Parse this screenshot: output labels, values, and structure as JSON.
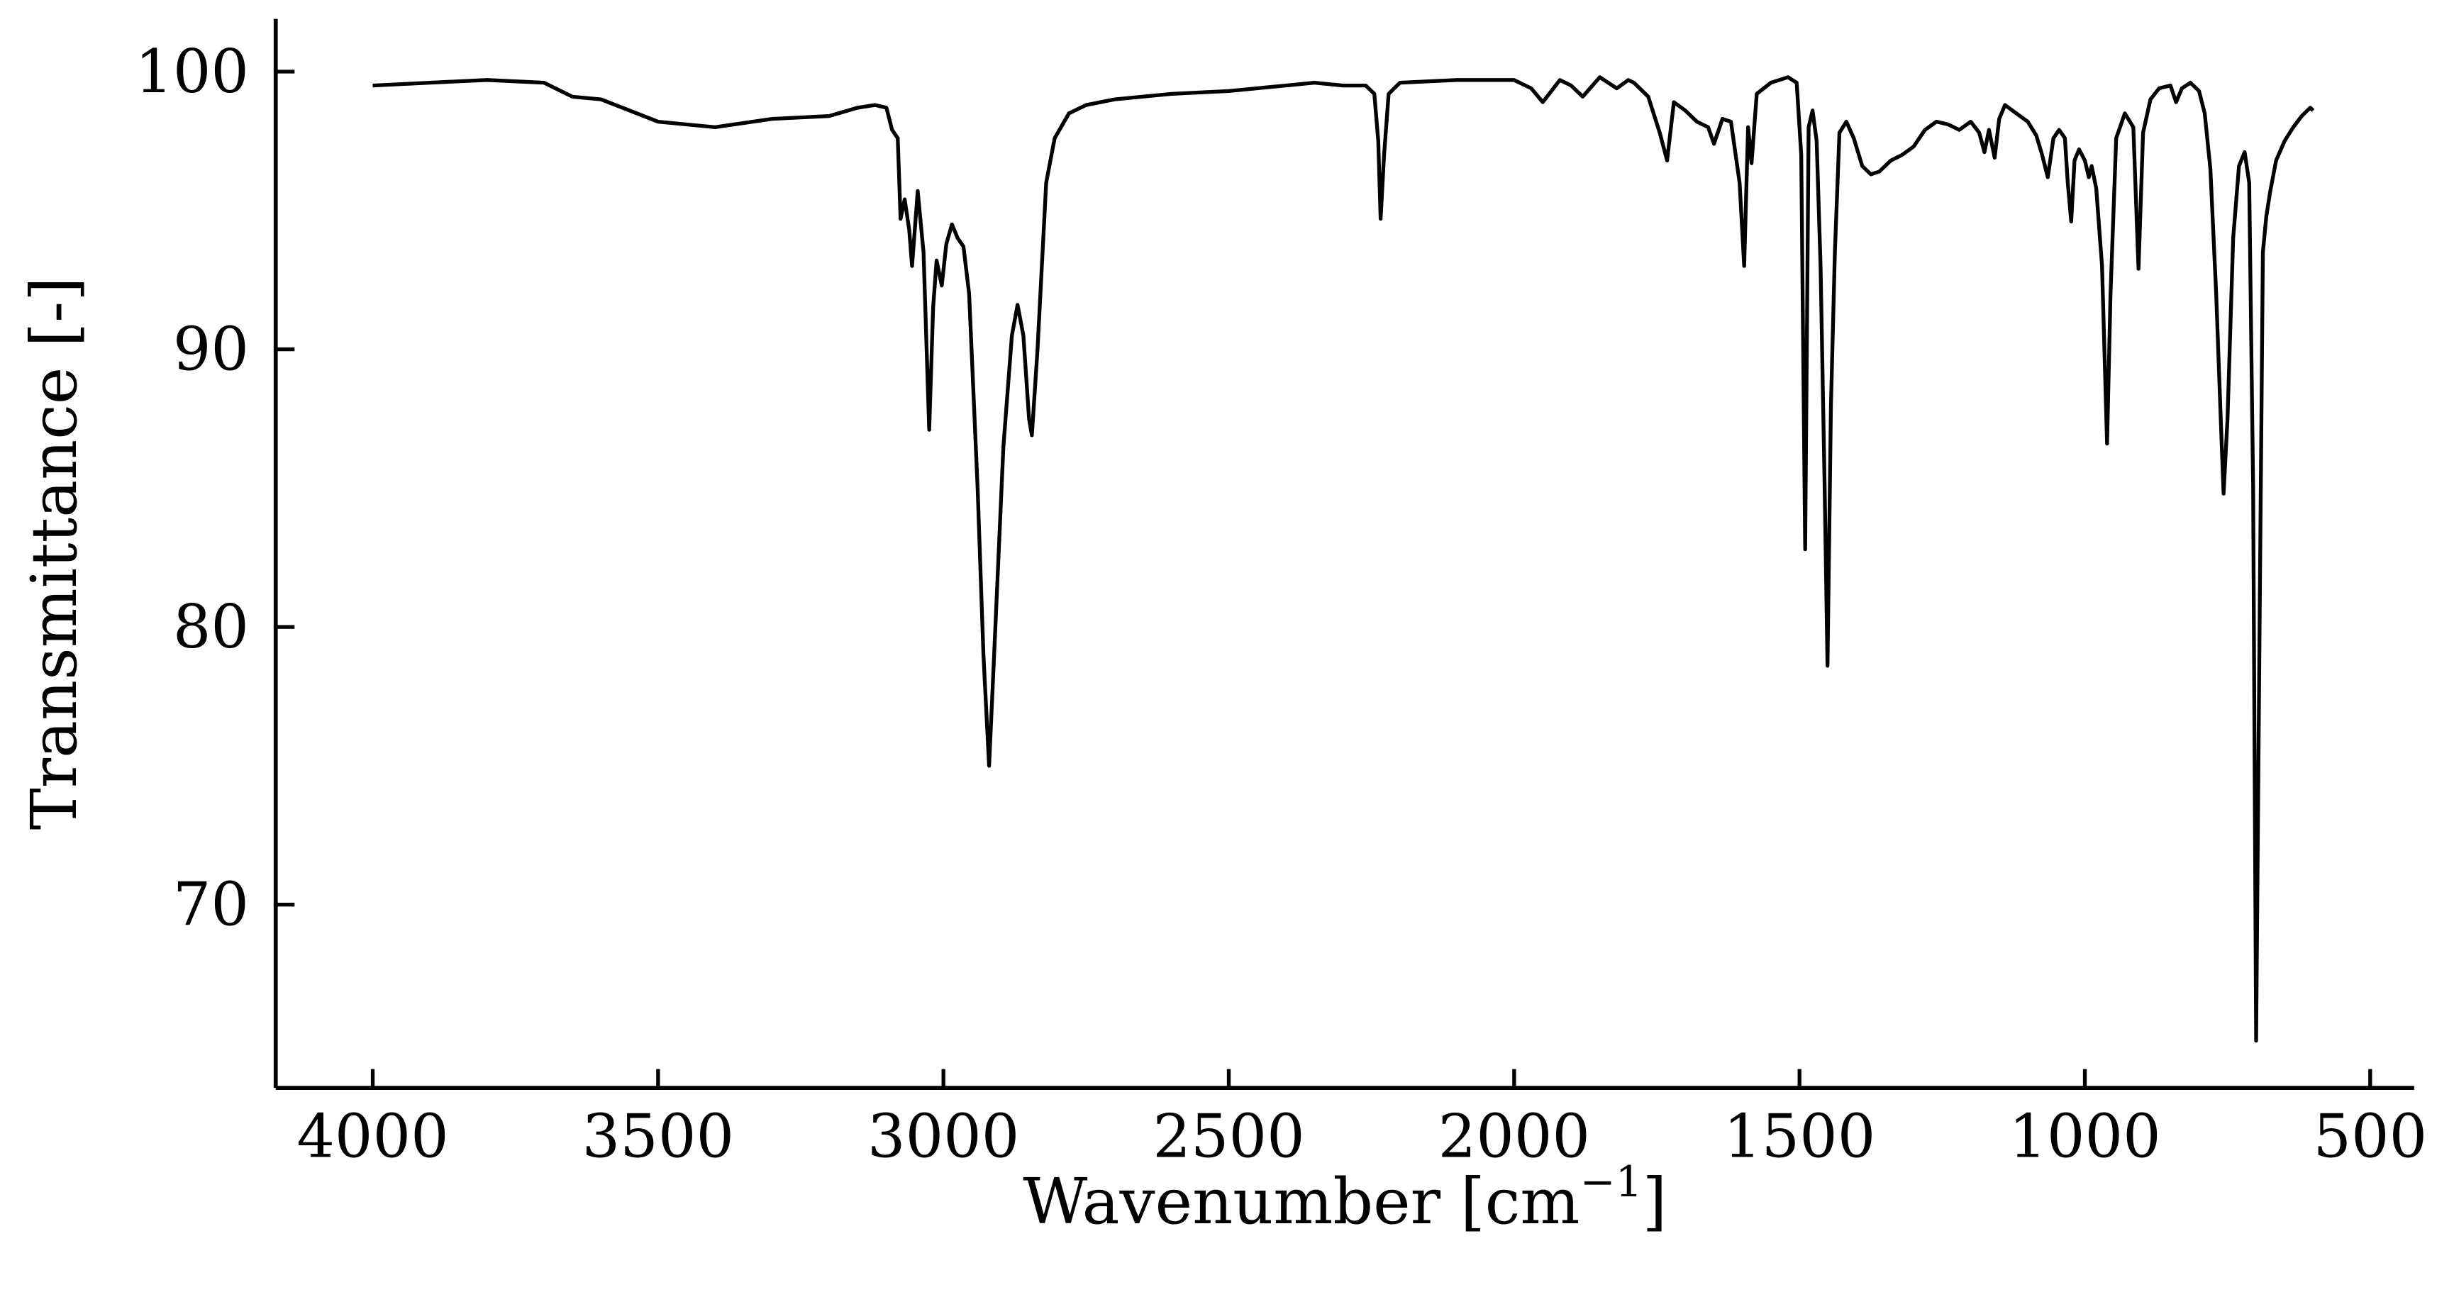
{
  "chart_data": {
    "type": "line",
    "title": "",
    "xlabel": "Wavenumber [cm",
    "xlabel_sup": "−1",
    "xlabel_end": "]",
    "ylabel": "Transmittance [-]",
    "xlim": [
      4170,
      423
    ],
    "ylim": [
      63.4,
      101.9
    ],
    "x_reversed": true,
    "grid": false,
    "line_color": "#000000",
    "x_ticks": [
      4000,
      3500,
      3000,
      2500,
      2000,
      1500,
      1000,
      500
    ],
    "x_tick_labels": [
      "4000",
      "3500",
      "3000",
      "2500",
      "2000",
      "1500",
      "1000",
      "500"
    ],
    "y_ticks": [
      70,
      80,
      90,
      100
    ],
    "y_tick_labels": [
      "70",
      "80",
      "90",
      "100"
    ],
    "series": [
      {
        "x": [
          4000,
          3900,
          3800,
          3700,
          3650,
          3600,
          3500,
          3400,
          3300,
          3200,
          3150,
          3120,
          3100,
          3090,
          3080,
          3075,
          3068,
          3060,
          3055,
          3045,
          3035,
          3025,
          3018,
          3012,
          3006,
          3003,
          2995,
          2985,
          2975,
          2965,
          2955,
          2940,
          2930,
          2920,
          2910,
          2895,
          2880,
          2870,
          2860,
          2850,
          2845,
          2835,
          2820,
          2805,
          2780,
          2750,
          2700,
          2600,
          2500,
          2400,
          2350,
          2300,
          2260,
          2245,
          2238,
          2234,
          2228,
          2220,
          2200,
          2100,
          2000,
          1970,
          1950,
          1920,
          1900,
          1880,
          1850,
          1820,
          1800,
          1790,
          1765,
          1745,
          1732,
          1720,
          1700,
          1680,
          1660,
          1650,
          1635,
          1620,
          1605,
          1597,
          1590,
          1584,
          1575,
          1550,
          1520,
          1505,
          1497,
          1490,
          1484,
          1477,
          1470,
          1463,
          1456,
          1451,
          1445,
          1438,
          1430,
          1418,
          1405,
          1390,
          1375,
          1360,
          1340,
          1320,
          1300,
          1280,
          1260,
          1240,
          1220,
          1200,
          1185,
          1176,
          1168,
          1158,
          1150,
          1140,
          1120,
          1100,
          1085,
          1075,
          1065,
          1055,
          1045,
          1035,
          1030,
          1024,
          1018,
          1010,
          1000,
          993,
          988,
          980,
          970,
          961,
          955,
          945,
          930,
          915,
          906,
          898,
          885,
          870,
          850,
          840,
          830,
          815,
          800,
          790,
          780,
          770,
          762,
          757,
          750,
          740,
          730,
          720,
          712,
          705,
          700,
          693,
          688,
          682,
          675,
          665,
          650,
          635,
          620,
          605,
          600
        ],
        "y": [
          99.5,
          99.6,
          99.7,
          99.6,
          99.1,
          99.0,
          98.2,
          98.0,
          98.3,
          98.4,
          98.7,
          98.8,
          98.7,
          97.9,
          97.6,
          94.7,
          95.4,
          94.3,
          93.0,
          95.7,
          93.5,
          87.1,
          91.5,
          93.2,
          92.6,
          92.3,
          93.8,
          94.5,
          94.0,
          93.7,
          92.0,
          85.0,
          79.0,
          75.0,
          79.5,
          86.5,
          90.5,
          91.6,
          90.5,
          87.5,
          86.9,
          90.0,
          96.0,
          97.6,
          98.5,
          98.8,
          99.0,
          99.2,
          99.3,
          99.5,
          99.6,
          99.5,
          99.5,
          99.2,
          97.5,
          94.7,
          97.0,
          99.2,
          99.6,
          99.7,
          99.7,
          99.4,
          98.9,
          99.7,
          99.5,
          99.1,
          99.8,
          99.4,
          99.7,
          99.6,
          99.1,
          97.8,
          96.8,
          98.9,
          98.6,
          98.2,
          98.0,
          97.4,
          98.3,
          98.2,
          96.0,
          93.0,
          98.0,
          96.7,
          99.2,
          99.6,
          99.8,
          99.6,
          97.0,
          82.8,
          98.0,
          98.6,
          97.5,
          93.0,
          85.0,
          78.6,
          88.0,
          93.5,
          97.8,
          98.2,
          97.6,
          96.6,
          96.3,
          96.4,
          96.8,
          97.0,
          97.3,
          97.9,
          98.2,
          98.1,
          97.9,
          98.2,
          97.8,
          97.1,
          97.9,
          96.9,
          98.3,
          98.8,
          98.5,
          98.2,
          97.7,
          97.0,
          96.2,
          97.6,
          97.9,
          97.6,
          96.0,
          94.6,
          96.8,
          97.2,
          96.8,
          96.2,
          96.6,
          95.8,
          93.0,
          86.6,
          92.0,
          97.6,
          98.5,
          98.0,
          92.9,
          97.8,
          99.0,
          99.4,
          99.5,
          98.9,
          99.4,
          99.6,
          99.3,
          98.5,
          96.5,
          92.0,
          87.5,
          84.8,
          87.5,
          94.0,
          96.6,
          97.1,
          96.0,
          85.0,
          65.1,
          82.0,
          93.5,
          94.8,
          95.7,
          96.8,
          97.5,
          98.0,
          98.4,
          98.7,
          98.6
        ]
      }
    ]
  }
}
